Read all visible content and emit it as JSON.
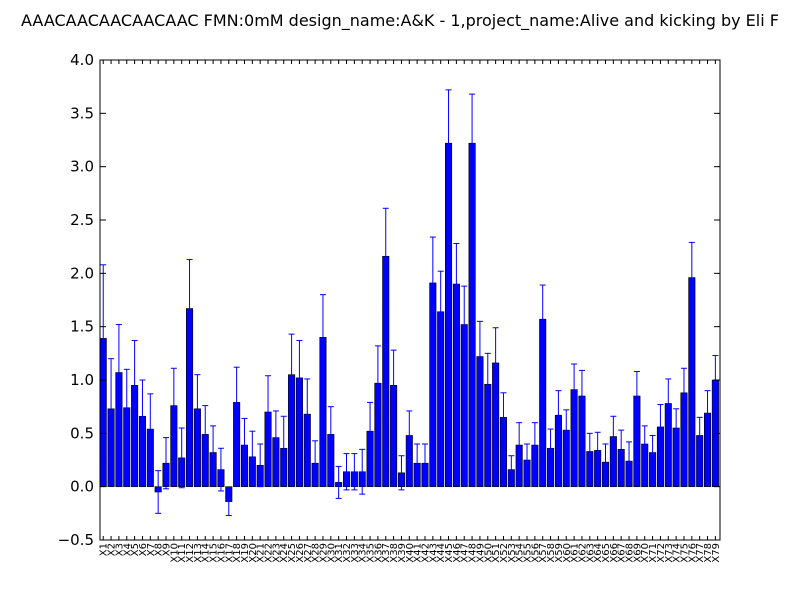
{
  "chart_data": {
    "type": "bar",
    "title": "AAACAACAACAACAAC  FMN:0mM  design_name:A&K - 1,project_name:Alive and kicking by Eli F",
    "xlabel": "",
    "ylabel": "",
    "ylim": [
      -0.5,
      4.0
    ],
    "yticks": [
      "−0.5",
      "0.0",
      "0.5",
      "1.0",
      "1.5",
      "2.0",
      "2.5",
      "3.0",
      "3.5",
      "4.0"
    ],
    "grid": false,
    "colors": {
      "bar": "#0000ff",
      "bar_edge": "#000000",
      "error": "#0000ff",
      "axis": "#000000"
    },
    "categories": [
      "X1",
      "X2",
      "X3",
      "X4",
      "X5",
      "X6",
      "X7",
      "X8",
      "X9",
      "X10",
      "X11",
      "X12",
      "X13",
      "X14",
      "X15",
      "X16",
      "X17",
      "X18",
      "X19",
      "X20",
      "X21",
      "X22",
      "X23",
      "X24",
      "X25",
      "X26",
      "X27",
      "X28",
      "X29",
      "X30",
      "X31",
      "X32",
      "X33",
      "X34",
      "X35",
      "X36",
      "X37",
      "X38",
      "X39",
      "X40",
      "X41",
      "X42",
      "X43",
      "X44",
      "X45",
      "X46",
      "X47",
      "X48",
      "X49",
      "X50",
      "X51",
      "X52",
      "X53",
      "X54",
      "X55",
      "X56",
      "X57",
      "X58",
      "X59",
      "X60",
      "X61",
      "X62",
      "X63",
      "X64",
      "X65",
      "X66",
      "X67",
      "X68",
      "X69",
      "X70",
      "X71",
      "X72",
      "X73",
      "X74",
      "X75",
      "X76",
      "X77",
      "X78",
      "X79"
    ],
    "values": [
      1.39,
      0.73,
      1.07,
      0.74,
      0.95,
      0.66,
      0.54,
      -0.05,
      0.22,
      0.76,
      0.27,
      1.67,
      0.73,
      0.49,
      0.32,
      0.16,
      -0.14,
      0.79,
      0.39,
      0.28,
      0.2,
      0.7,
      0.46,
      0.36,
      1.05,
      1.02,
      0.68,
      0.22,
      1.4,
      0.49,
      0.04,
      0.14,
      0.14,
      0.14,
      0.52,
      0.97,
      2.16,
      0.95,
      0.13,
      0.48,
      0.22,
      0.22,
      1.91,
      1.64,
      3.22,
      1.9,
      1.52,
      3.22,
      1.22,
      0.96,
      1.16,
      0.65,
      0.16,
      0.39,
      0.25,
      0.39,
      1.57,
      0.36,
      0.67,
      0.53,
      0.91,
      0.85,
      0.33,
      0.34,
      0.23,
      0.47,
      0.35,
      0.24,
      0.85,
      0.4,
      0.32,
      0.56,
      0.78,
      0.55,
      0.88,
      1.96,
      0.48,
      0.69,
      1.0
    ],
    "errors": [
      0.69,
      0.47,
      0.45,
      0.36,
      0.42,
      0.34,
      0.33,
      0.2,
      0.24,
      0.35,
      0.28,
      0.46,
      0.32,
      0.27,
      0.25,
      0.2,
      0.13,
      0.33,
      0.25,
      0.24,
      0.2,
      0.34,
      0.25,
      0.3,
      0.38,
      0.35,
      0.33,
      0.21,
      0.4,
      0.26,
      0.15,
      0.17,
      0.17,
      0.21,
      0.27,
      0.35,
      0.45,
      0.33,
      0.16,
      0.23,
      0.18,
      0.18,
      0.43,
      0.38,
      0.5,
      0.38,
      0.36,
      0.46,
      0.33,
      0.29,
      0.33,
      0.23,
      0.13,
      0.21,
      0.15,
      0.21,
      0.32,
      0.18,
      0.23,
      0.19,
      0.24,
      0.24,
      0.17,
      0.17,
      0.17,
      0.19,
      0.18,
      0.18,
      0.23,
      0.17,
      0.16,
      0.21,
      0.23,
      0.18,
      0.23,
      0.33,
      0.17,
      0.21,
      0.23
    ]
  }
}
